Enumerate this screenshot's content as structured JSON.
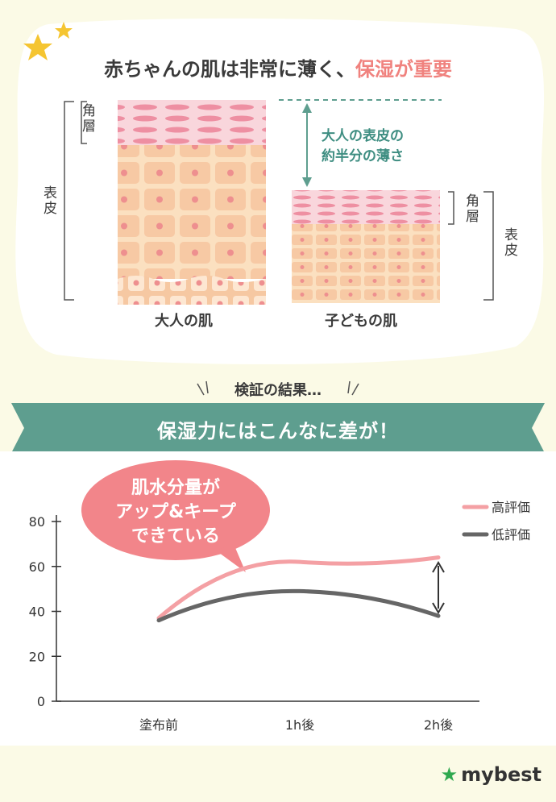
{
  "illustration": {
    "title_main": "赤ちゃんの肌は非常に薄く、",
    "title_accent": "保湿が重要",
    "adult": {
      "caption": "大人の肌",
      "label_stratum": "角層",
      "label_epidermis": "表皮"
    },
    "child": {
      "caption": "子どもの肌",
      "label_stratum": "角層",
      "label_epidermis": "表皮"
    },
    "note_line1": "大人の表皮の",
    "note_line2": "約半分の薄さ"
  },
  "verify_text": "検証の結果…",
  "banner_text": "保湿力にはこんなに差が！",
  "bubble": {
    "line1": "肌水分量が",
    "line2": "アップ&キープ",
    "line3": "できている"
  },
  "colors": {
    "accent": "#f0827e",
    "teal": "#5e9e8f",
    "pink_line": "#f4a0a4",
    "gray_line": "#666666"
  },
  "chart_data": {
    "type": "line",
    "categories": [
      "塗布前",
      "1h後",
      "2h後"
    ],
    "series": [
      {
        "name": "高評価",
        "values": [
          37,
          62,
          64
        ],
        "color": "#f4a0a4"
      },
      {
        "name": "低評価",
        "values": [
          36,
          49,
          38
        ],
        "color": "#666666"
      }
    ],
    "ylim": [
      0,
      80
    ],
    "yticks": [
      0,
      20,
      40,
      60,
      80
    ],
    "legend": "top-right"
  },
  "brand": "mybest"
}
